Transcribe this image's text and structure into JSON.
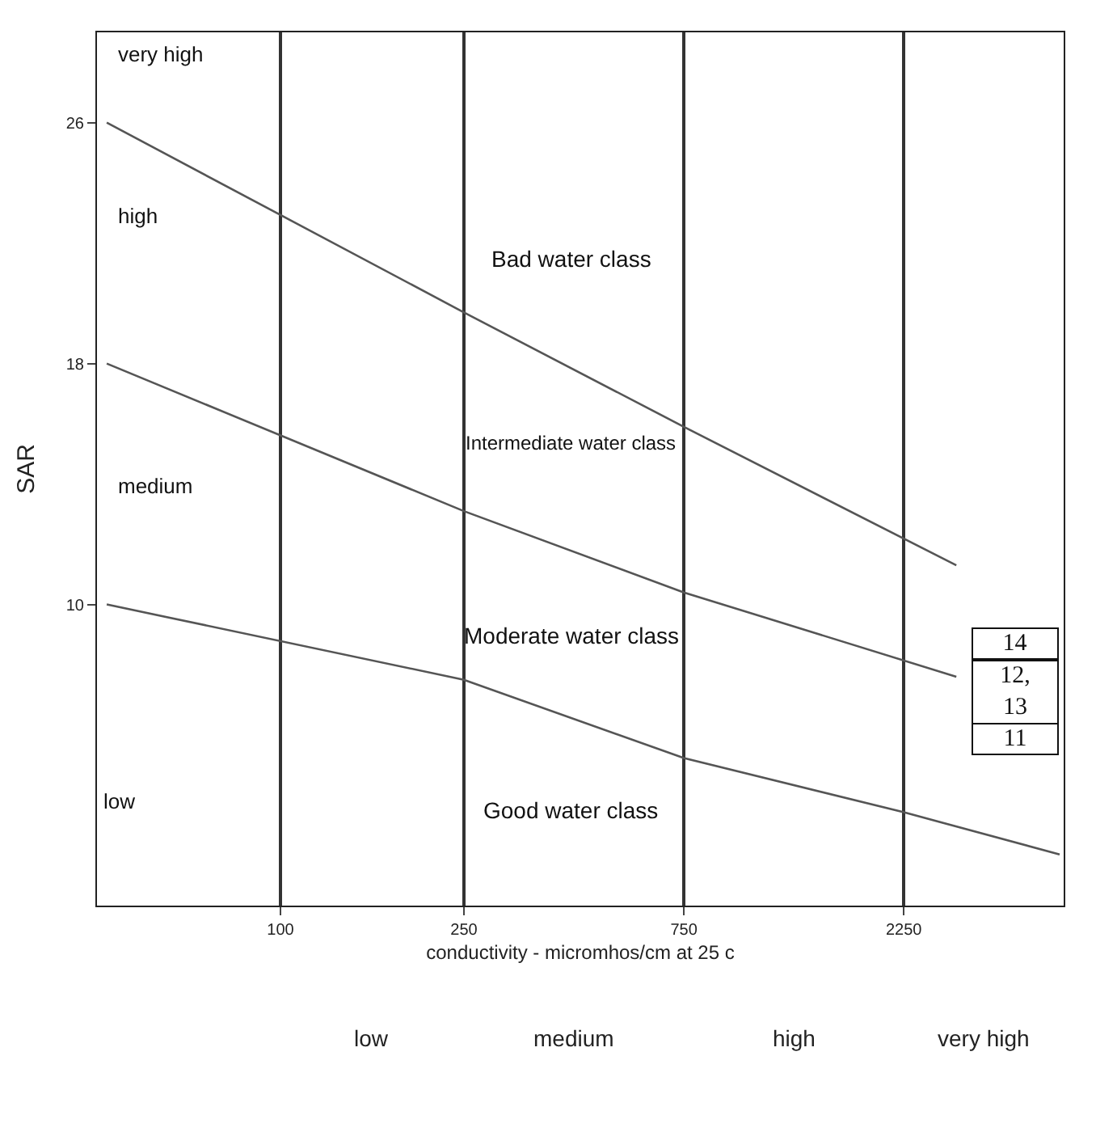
{
  "chart_data": {
    "type": "line",
    "xlabel": "conductivity - micromhos/cm at 25 c",
    "ylabel": "SAR",
    "log": "x",
    "xlim": [
      40,
      5000
    ],
    "ylim": [
      0,
      29
    ],
    "xticks": [
      100,
      250,
      750,
      2250
    ],
    "yticks": [
      10,
      18,
      26
    ],
    "grid": "x",
    "marker": "none",
    "line_style": "solid",
    "series": [
      {
        "color": "#555555",
        "x": [
          42,
          250,
          750,
          2925
        ],
        "values": [
          26,
          19.7,
          15.9,
          11.3
        ]
      },
      {
        "color": "#555555",
        "x": [
          42,
          250,
          750,
          2925
        ],
        "values": [
          18,
          13.1,
          10.4,
          7.6
        ]
      },
      {
        "color": "#555555",
        "x": [
          42,
          250,
          750,
          2250,
          4900
        ],
        "values": [
          10,
          7.5,
          4.9,
          3.1,
          1.7
        ]
      }
    ],
    "annotations": [
      "Bad water class",
      "Intermediate water class",
      "Moderate water class",
      "Good water class",
      "very high",
      "high",
      "medium",
      "low",
      "14",
      "12, 13",
      "11",
      "low",
      "medium",
      "high",
      "very high"
    ]
  }
}
